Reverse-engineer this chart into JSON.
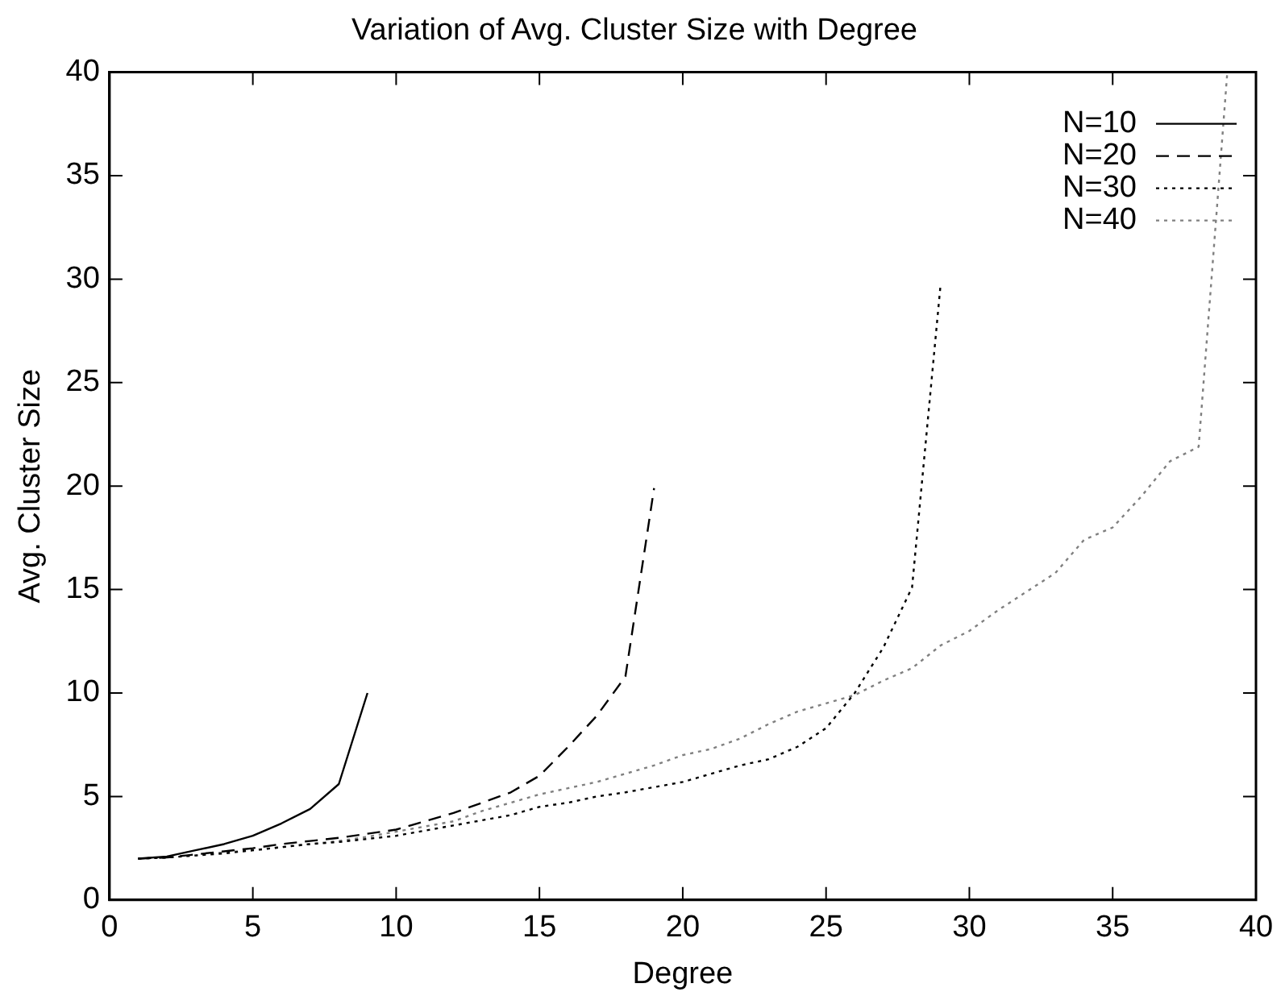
{
  "chart_data": {
    "type": "line",
    "title": "Variation of Avg. Cluster Size with Degree",
    "xlabel": "Degree",
    "ylabel": "Avg. Cluster Size",
    "xlim": [
      0,
      40
    ],
    "xticks": [
      0,
      5,
      10,
      15,
      20,
      25,
      30,
      35,
      40
    ],
    "ylim": [
      0,
      40
    ],
    "yticks": [
      0,
      5,
      10,
      15,
      20,
      25,
      30,
      35,
      40
    ],
    "grid": false,
    "legend": "top right",
    "marker": "none",
    "series": [
      {
        "name": "N=10",
        "color": "#000000",
        "line_style": "solid",
        "x": [
          1,
          2,
          3,
          4,
          5,
          6,
          7,
          8,
          9
        ],
        "values": [
          2,
          2.1,
          2.4,
          2.7,
          3.1,
          3.7,
          4.4,
          5.6,
          10
        ]
      },
      {
        "name": "N=20",
        "color": "#000000",
        "line_style": "dashed",
        "x": [
          1,
          2,
          3,
          4,
          5,
          6,
          7,
          8,
          9,
          10,
          11,
          12,
          13,
          14,
          15,
          16,
          17,
          18,
          19
        ],
        "values": [
          2,
          2.05,
          2.2,
          2.35,
          2.5,
          2.7,
          2.85,
          3,
          3.2,
          3.4,
          3.8,
          4.2,
          4.7,
          5.2,
          6,
          7.4,
          8.9,
          10.8,
          19.9
        ]
      },
      {
        "name": "N=30",
        "color": "#000000",
        "line_style": "dotted",
        "x": [
          1,
          2,
          3,
          4,
          5,
          6,
          7,
          8,
          9,
          10,
          11,
          12,
          13,
          14,
          15,
          16,
          17,
          18,
          19,
          20,
          21,
          22,
          23,
          24,
          25,
          26,
          27,
          28,
          29
        ],
        "values": [
          2,
          2.05,
          2.15,
          2.25,
          2.4,
          2.55,
          2.7,
          2.8,
          2.95,
          3.1,
          3.35,
          3.6,
          3.85,
          4.1,
          4.5,
          4.7,
          5,
          5.2,
          5.45,
          5.7,
          6.1,
          6.5,
          6.8,
          7.4,
          8.3,
          10,
          12.2,
          15.1,
          29.8
        ]
      },
      {
        "name": "N=40",
        "color": "#808080",
        "line_style": "dotted",
        "x": [
          1,
          2,
          3,
          4,
          5,
          6,
          7,
          8,
          9,
          10,
          11,
          12,
          13,
          14,
          15,
          16,
          17,
          18,
          19,
          20,
          21,
          22,
          23,
          24,
          25,
          26,
          27,
          28,
          29,
          30,
          31,
          32,
          33,
          34,
          35,
          36,
          37,
          38,
          39
        ],
        "values": [
          2,
          2.05,
          2.15,
          2.3,
          2.4,
          2.55,
          2.7,
          2.85,
          3.05,
          3.3,
          3.55,
          3.8,
          4.3,
          4.7,
          5.1,
          5.4,
          5.7,
          6.1,
          6.5,
          7,
          7.3,
          7.8,
          8.5,
          9.1,
          9.5,
          9.9,
          10.6,
          11.2,
          12.3,
          13,
          14,
          14.9,
          15.8,
          17.4,
          18,
          19.5,
          21.2,
          21.9,
          40
        ]
      }
    ]
  }
}
